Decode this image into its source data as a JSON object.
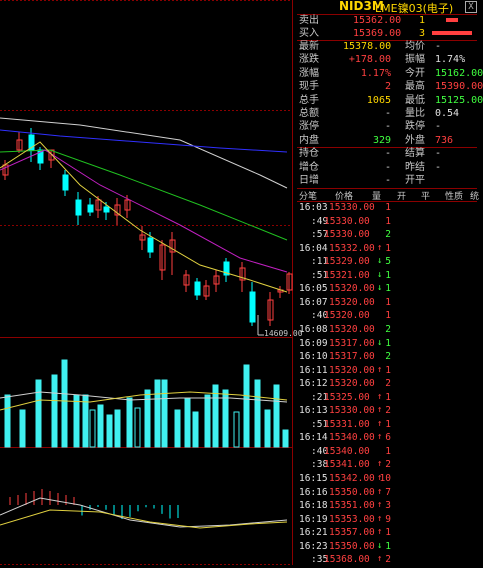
{
  "header": {
    "code": "NID3M",
    "name": "LME镍03(电子)",
    "close_symbol": "X"
  },
  "quote": {
    "sell": {
      "label": "卖出",
      "price": "15362.00",
      "vol": "1"
    },
    "buy": {
      "label": "买入",
      "price": "15369.00",
      "vol": "3"
    },
    "rows": [
      {
        "l1": "最新",
        "v1": "15378.00",
        "c1": "yellow",
        "l2": "均价",
        "v2": "-",
        "c2": "white"
      },
      {
        "l1": "涨跌",
        "v1": "+178.00",
        "c1": "red",
        "l2": "振幅",
        "v2": "1.74%",
        "c2": "white"
      },
      {
        "l1": "涨幅",
        "v1": "1.17%",
        "c1": "red",
        "l2": "今开",
        "v2": "15162.00",
        "c2": "green"
      },
      {
        "l1": "现手",
        "v1": "2",
        "c1": "red",
        "l2": "最高",
        "v2": "15390.00",
        "c2": "red"
      },
      {
        "l1": "总手",
        "v1": "1065",
        "c1": "yellow",
        "l2": "最低",
        "v2": "15125.00",
        "c2": "green"
      },
      {
        "l1": "总额",
        "v1": "-",
        "c1": "white",
        "l2": "量比",
        "v2": "0.54",
        "c2": "white"
      },
      {
        "l1": "涨停",
        "v1": "-",
        "c1": "white",
        "l2": "跌停",
        "v2": "-",
        "c2": "white"
      },
      {
        "l1": "内盘",
        "v1": "329",
        "c1": "green",
        "l2": "外盘",
        "v2": "736",
        "c2": "red"
      },
      {
        "l1": "持仓",
        "v1": "-",
        "c1": "white",
        "l2": "结算",
        "v2": "-",
        "c2": "white"
      },
      {
        "l1": "增仓",
        "v1": "-",
        "c1": "white",
        "l2": "昨结",
        "v2": "-",
        "c2": "white"
      },
      {
        "l1": "日增",
        "v1": "-",
        "c1": "white",
        "l2": "开平",
        "v2": "",
        "c2": "white"
      }
    ]
  },
  "ticks_header": [
    "分笔",
    "价格",
    "量",
    "开",
    "平",
    "性质",
    "统"
  ],
  "ticks": [
    {
      "time": "16:03",
      "price": "15330.00",
      "arrow": "",
      "vol": "1",
      "vc": "red"
    },
    {
      "time": ":49",
      "price": "15330.00",
      "arrow": "",
      "vol": "1",
      "vc": "red"
    },
    {
      "time": ":57",
      "price": "15330.00",
      "arrow": "",
      "vol": "2",
      "vc": "green"
    },
    {
      "time": "16:04",
      "price": "15332.00",
      "arrow": "↑",
      "vol": "1",
      "vc": "red"
    },
    {
      "time": ":11",
      "price": "15329.00",
      "arrow": "↓",
      "vol": "5",
      "vc": "green"
    },
    {
      "time": ":51",
      "price": "15321.00",
      "arrow": "↓",
      "vol": "1",
      "vc": "green"
    },
    {
      "time": "16:05",
      "price": "15320.00",
      "arrow": "↓",
      "vol": "1",
      "vc": "green"
    },
    {
      "time": "16:07",
      "price": "15320.00",
      "arrow": "",
      "vol": "1",
      "vc": "red"
    },
    {
      "time": ":40",
      "price": "15320.00",
      "arrow": "",
      "vol": "1",
      "vc": "red"
    },
    {
      "time": "16:08",
      "price": "15320.00",
      "arrow": "",
      "vol": "2",
      "vc": "green"
    },
    {
      "time": "16:09",
      "price": "15317.00",
      "arrow": "↓",
      "vol": "1",
      "vc": "green"
    },
    {
      "time": "16:10",
      "price": "15317.00",
      "arrow": "",
      "vol": "2",
      "vc": "green"
    },
    {
      "time": "16:11",
      "price": "15320.00",
      "arrow": "↑",
      "vol": "1",
      "vc": "red"
    },
    {
      "time": "16:12",
      "price": "15320.00",
      "arrow": "",
      "vol": "2",
      "vc": "red"
    },
    {
      "time": ":21",
      "price": "15325.00",
      "arrow": "↑",
      "vol": "1",
      "vc": "red"
    },
    {
      "time": "16:13",
      "price": "15330.00",
      "arrow": "↑",
      "vol": "2",
      "vc": "red"
    },
    {
      "time": ":51",
      "price": "15331.00",
      "arrow": "↑",
      "vol": "1",
      "vc": "red"
    },
    {
      "time": "16:14",
      "price": "15340.00",
      "arrow": "↑",
      "vol": "6",
      "vc": "red"
    },
    {
      "time": ":40",
      "price": "15340.00",
      "arrow": "",
      "vol": "1",
      "vc": "red"
    },
    {
      "time": ":38",
      "price": "15341.00",
      "arrow": "↑",
      "vol": "2",
      "vc": "red"
    },
    {
      "time": "16:15",
      "price": "15342.00",
      "arrow": "↑",
      "vol": "10",
      "vc": "red"
    },
    {
      "time": "16:16",
      "price": "15350.00",
      "arrow": "↑",
      "vol": "7",
      "vc": "red"
    },
    {
      "time": "16:18",
      "price": "15351.00",
      "arrow": "↑",
      "vol": "3",
      "vc": "red"
    },
    {
      "time": "16:19",
      "price": "15353.00",
      "arrow": "↑",
      "vol": "9",
      "vc": "red"
    },
    {
      "time": "16:21",
      "price": "15357.00",
      "arrow": "↑",
      "vol": "1",
      "vc": "red"
    },
    {
      "time": "16:23",
      "price": "15350.00",
      "arrow": "↓",
      "vol": "1",
      "vc": "green"
    },
    {
      "time": ":35",
      "price": "15368.00",
      "arrow": "↑",
      "vol": "2",
      "vc": "red"
    }
  ],
  "chart": {
    "low_label": "14609.00"
  },
  "colors": {
    "up": "#ff4040",
    "down": "#00ffff",
    "grid": "#8b0000",
    "ma_white": "#d0d0d0",
    "ma_blue": "#3030ff",
    "ma_green": "#20c020",
    "ma_purple": "#c020c0",
    "ma_yellow": "#e0d040"
  }
}
